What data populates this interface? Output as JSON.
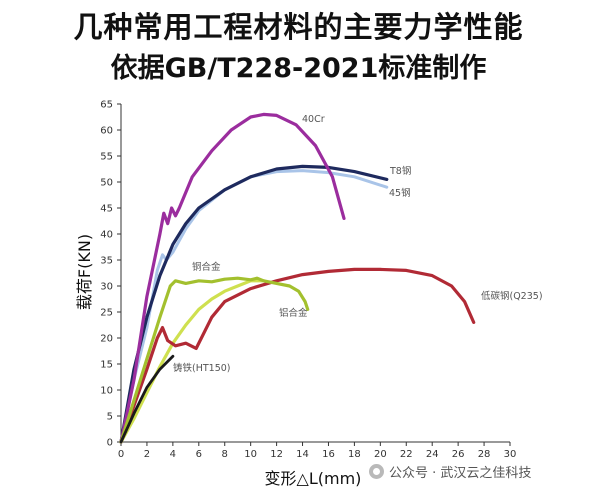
{
  "header": {
    "title": "几种常用工程材料的主要力学性能",
    "subtitle": "依据GB/T228-2021标准制作"
  },
  "watermark": {
    "text": "公众号 · 武汉云之佳科技",
    "icon": "wechat-channel-icon"
  },
  "chart_data": {
    "type": "line",
    "title": "",
    "xlabel": "变形△L(mm)",
    "ylabel": "载荷F(KN)",
    "xlim": [
      0,
      30
    ],
    "ylim": [
      0,
      65
    ],
    "x_ticks": [
      0,
      2,
      4,
      6,
      8,
      10,
      12,
      14,
      16,
      18,
      20,
      22,
      24,
      26,
      28,
      30
    ],
    "y_ticks": [
      0,
      5,
      10,
      15,
      20,
      25,
      30,
      35,
      40,
      45,
      50,
      55,
      60,
      65
    ],
    "grid": false,
    "series": [
      {
        "name": "40Cr",
        "color": "#9b2d9e",
        "points": [
          [
            0,
            0
          ],
          [
            1,
            12
          ],
          [
            2,
            28
          ],
          [
            3,
            40
          ],
          [
            3.3,
            44
          ],
          [
            3.6,
            42
          ],
          [
            3.9,
            45
          ],
          [
            4.2,
            43.5
          ],
          [
            4.5,
            45
          ],
          [
            5.5,
            51
          ],
          [
            7,
            56
          ],
          [
            8.5,
            60
          ],
          [
            10,
            62.5
          ],
          [
            11,
            63
          ],
          [
            12,
            62.8
          ],
          [
            13.5,
            61
          ],
          [
            15,
            57
          ],
          [
            16.3,
            51
          ],
          [
            17.2,
            43
          ]
        ]
      },
      {
        "name": "T8钢",
        "color": "#1e2a5e",
        "points": [
          [
            0,
            0
          ],
          [
            1,
            14
          ],
          [
            2,
            24
          ],
          [
            3,
            32
          ],
          [
            4,
            38
          ],
          [
            5,
            42
          ],
          [
            6,
            45
          ],
          [
            8,
            48.5
          ],
          [
            10,
            51
          ],
          [
            12,
            52.5
          ],
          [
            14,
            53
          ],
          [
            16,
            52.8
          ],
          [
            18,
            52
          ],
          [
            20.5,
            50.5
          ]
        ]
      },
      {
        "name": "45钢",
        "color": "#a9c4e8",
        "points": [
          [
            0,
            0
          ],
          [
            1,
            12
          ],
          [
            2,
            22
          ],
          [
            2.8,
            33
          ],
          [
            3.2,
            36
          ],
          [
            3.5,
            35
          ],
          [
            4,
            36.5
          ],
          [
            5,
            41
          ],
          [
            6,
            44.5
          ],
          [
            8,
            48.5
          ],
          [
            10,
            51
          ],
          [
            12,
            52
          ],
          [
            14,
            52.2
          ],
          [
            16,
            51.8
          ],
          [
            18,
            51
          ],
          [
            20.5,
            49
          ]
        ]
      },
      {
        "name": "铜合金",
        "color": "#a3c02e",
        "points": [
          [
            0,
            0
          ],
          [
            1,
            8
          ],
          [
            2,
            16
          ],
          [
            3,
            24
          ],
          [
            3.8,
            30
          ],
          [
            4.2,
            31
          ],
          [
            5,
            30.5
          ],
          [
            6,
            31
          ],
          [
            7,
            30.8
          ],
          [
            8,
            31.3
          ],
          [
            9,
            31.5
          ],
          [
            10,
            31.2
          ],
          [
            10.5,
            31.5
          ],
          [
            11,
            31
          ],
          [
            12,
            30.5
          ],
          [
            13,
            30
          ],
          [
            13.7,
            29
          ],
          [
            14.2,
            27
          ],
          [
            14.4,
            25.5
          ]
        ]
      },
      {
        "name": "铝合金",
        "color": "#cfe04f",
        "points": [
          [
            0,
            0
          ],
          [
            1,
            4.5
          ],
          [
            2,
            9.5
          ],
          [
            3,
            14.5
          ],
          [
            4,
            19
          ],
          [
            5,
            22.5
          ],
          [
            6,
            25.5
          ],
          [
            7,
            27.5
          ],
          [
            8,
            29
          ],
          [
            9,
            30
          ],
          [
            10,
            31
          ],
          [
            11,
            31
          ]
        ]
      },
      {
        "name": "低碳钢(Q235)",
        "color": "#b12a35",
        "points": [
          [
            0,
            0
          ],
          [
            1,
            7
          ],
          [
            2,
            14
          ],
          [
            2.8,
            20
          ],
          [
            3.2,
            22
          ],
          [
            3.6,
            19.5
          ],
          [
            4.2,
            18.5
          ],
          [
            5,
            19
          ],
          [
            5.8,
            18
          ],
          [
            6.2,
            20
          ],
          [
            7,
            24
          ],
          [
            8,
            27
          ],
          [
            10,
            29.5
          ],
          [
            12,
            31
          ],
          [
            14,
            32.2
          ],
          [
            16,
            32.8
          ],
          [
            18,
            33.2
          ],
          [
            20,
            33.2
          ],
          [
            22,
            33
          ],
          [
            24,
            32
          ],
          [
            25.5,
            30
          ],
          [
            26.5,
            27
          ],
          [
            27.2,
            23
          ]
        ]
      },
      {
        "name": "铸铁(HT150)",
        "color": "#1a1a1a",
        "points": [
          [
            0,
            0
          ],
          [
            1,
            5.5
          ],
          [
            2,
            10.5
          ],
          [
            3,
            14
          ],
          [
            4,
            16.5
          ]
        ]
      }
    ],
    "annotations": [
      {
        "text": "40Cr",
        "series": "40Cr"
      },
      {
        "text": "T8钢",
        "series": "T8钢"
      },
      {
        "text": "45钢",
        "series": "45钢"
      },
      {
        "text": "铜合金",
        "series": "铜合金"
      },
      {
        "text": "铝合金",
        "series": "铝合金"
      },
      {
        "text": "低碳钢(Q235)",
        "series": "低碳钢(Q235)"
      },
      {
        "text": "铸铁(HT150)",
        "series": "铸铁(HT150)"
      }
    ]
  }
}
